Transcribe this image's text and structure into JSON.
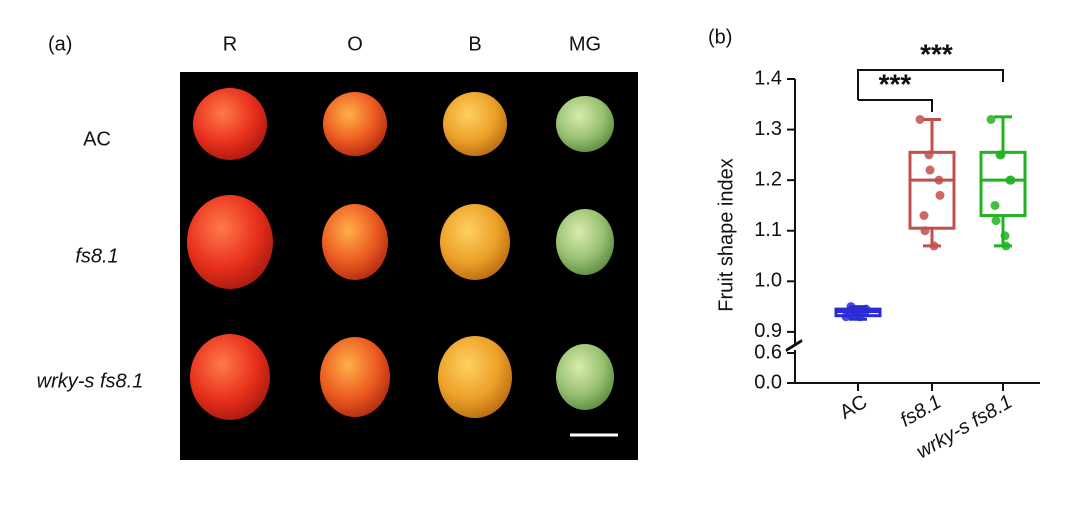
{
  "photo_panel": {
    "label": "(a)",
    "columns": [
      "R",
      "O",
      "B",
      "MG"
    ],
    "rows": [
      "AC",
      "fs8.1",
      "wrky-s fs8.1"
    ]
  },
  "chart_data": {
    "type": "box",
    "panel_label": "(b)",
    "y_label": "Fruit shape index",
    "categories": [
      "AC",
      "fs8.1",
      "wrky-s fs8.1"
    ],
    "series": [
      {
        "name": "AC",
        "color": "#2b2bd6",
        "min": 0.925,
        "q1": 0.932,
        "median": 0.94,
        "q3": 0.945,
        "max": 0.95,
        "points": [
          0.93,
          0.935,
          0.94,
          0.94,
          0.945,
          0.935,
          0.95,
          0.93
        ]
      },
      {
        "name": "fs8.1",
        "color": "#c0504d",
        "min": 1.07,
        "q1": 1.105,
        "median": 1.2,
        "q3": 1.255,
        "max": 1.32,
        "points": [
          1.32,
          1.25,
          1.22,
          1.2,
          1.17,
          1.13,
          1.1,
          1.07
        ]
      },
      {
        "name": "wrky-s fs8.1",
        "color": "#22b322",
        "min": 1.07,
        "q1": 1.13,
        "median": 1.2,
        "q3": 1.255,
        "max": 1.325,
        "points": [
          1.32,
          1.25,
          1.25,
          1.2,
          1.2,
          1.15,
          1.12,
          1.09,
          1.07
        ]
      }
    ],
    "ylim": [
      0,
      1.4
    ],
    "axis_break": [
      0.6,
      0.88
    ],
    "yticks": [
      {
        "value": 0,
        "label": "0.0"
      },
      0.6,
      0.9,
      {
        "value": 1,
        "label": "1.0"
      },
      1.1,
      1.2,
      1.3,
      1.4
    ],
    "annotations": [
      {
        "text": "***",
        "from": "AC",
        "to": "fs8.1"
      },
      {
        "text": "***",
        "from": "AC",
        "to": "wrky-s fs8.1"
      }
    ]
  }
}
